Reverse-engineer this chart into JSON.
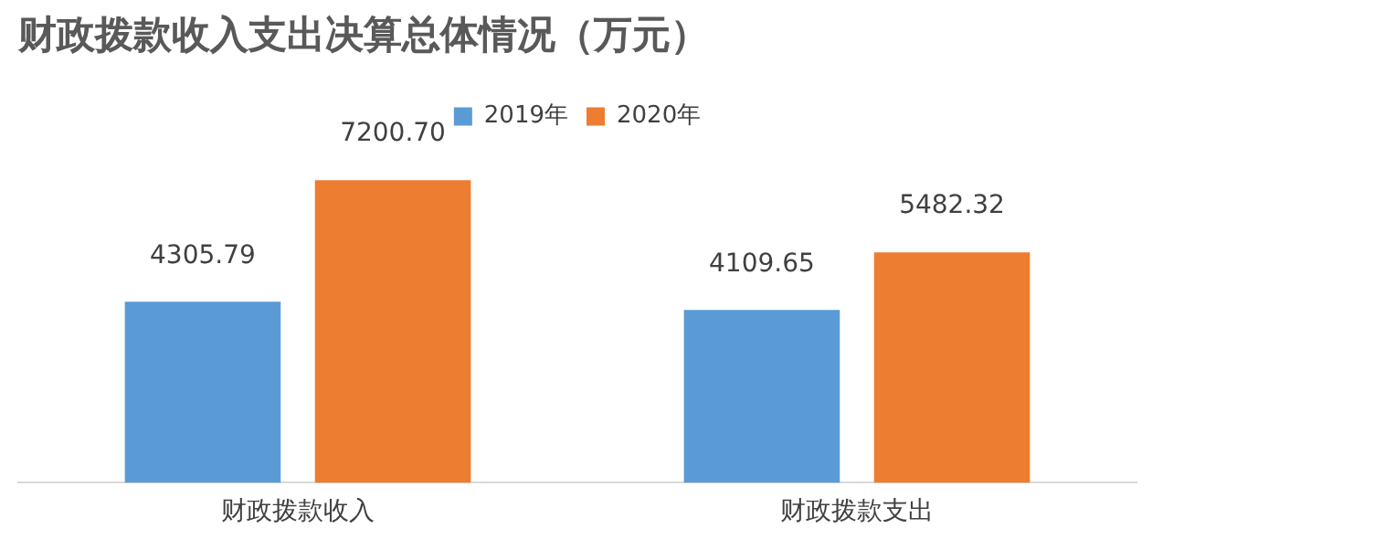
{
  "chart_data": {
    "type": "bar",
    "title": "财政拨款收入支出决算总体情况（万元）",
    "categories": [
      "财政拨款收入",
      "财政拨款支出"
    ],
    "series": [
      {
        "name": "2019年",
        "color": "#5b9bd5",
        "values": [
          4305.79,
          4109.65
        ],
        "value_labels": [
          "4305.79",
          "4109.65"
        ]
      },
      {
        "name": "2020年",
        "color": "#ed7d31",
        "values": [
          7200.7,
          5482.32
        ],
        "value_labels": [
          "7200.70",
          "5482.32"
        ]
      }
    ],
    "legend": "top",
    "grid": false
  }
}
